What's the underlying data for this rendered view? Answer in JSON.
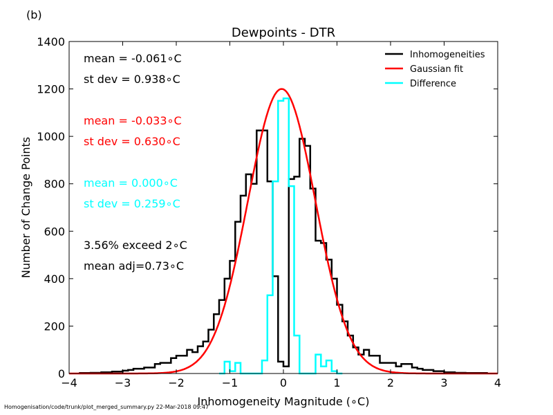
{
  "panel_label": "(b)",
  "footer": "Homogenisation/code/trunk/plot_merged_summary.py   22-Mar-2018 09:47",
  "chart_data": {
    "type": "line",
    "title": "Dewpoints - DTR",
    "xlabel": "Inhomogeneity Magnitude (∘C)",
    "ylabel": "Number of Change Points",
    "xlim": [
      -4,
      4
    ],
    "ylim": [
      0,
      1400
    ],
    "x_ticks": [
      -4,
      -3,
      -2,
      -1,
      0,
      1,
      2,
      3,
      4
    ],
    "x_tick_labels": [
      "−4",
      "−3",
      "−2",
      "−1",
      "0",
      "1",
      "2",
      "3",
      "4"
    ],
    "y_ticks": [
      0,
      200,
      400,
      600,
      800,
      1000,
      1200,
      1400
    ],
    "y_tick_labels": [
      "0",
      "200",
      "400",
      "600",
      "800",
      "1000",
      "1200",
      "1400"
    ],
    "grid": false,
    "legend_position": "top-right",
    "bin_width": 0.1,
    "series": [
      {
        "name": "Inhomogeneities",
        "color": "#000000",
        "style": "step",
        "bin_left_edges": [
          -3.8,
          -3.7,
          -3.6,
          -3.5,
          -3.4,
          -3.3,
          -3.2,
          -3.1,
          -3.0,
          -2.9,
          -2.8,
          -2.7,
          -2.6,
          -2.5,
          -2.4,
          -2.3,
          -2.2,
          -2.1,
          -2.0,
          -1.9,
          -1.8,
          -1.7,
          -1.6,
          -1.5,
          -1.4,
          -1.3,
          -1.2,
          -1.1,
          -1.0,
          -0.9,
          -0.8,
          -0.7,
          -0.6,
          -0.5,
          -0.4,
          -0.3,
          -0.2,
          -0.1,
          0.0,
          0.1,
          0.2,
          0.3,
          0.4,
          0.5,
          0.6,
          0.7,
          0.8,
          0.9,
          1.0,
          1.1,
          1.2,
          1.3,
          1.4,
          1.5,
          1.6,
          1.7,
          1.8,
          1.9,
          2.0,
          2.1,
          2.2,
          2.3,
          2.4,
          2.5,
          2.6,
          2.7,
          2.8,
          2.9,
          3.0,
          3.1,
          3.2,
          3.3,
          3.4,
          3.5,
          3.6,
          3.7
        ],
        "values": [
          2,
          2,
          3,
          3,
          5,
          5,
          8,
          8,
          12,
          15,
          20,
          20,
          25,
          25,
          40,
          45,
          45,
          65,
          75,
          75,
          100,
          90,
          115,
          135,
          185,
          250,
          310,
          400,
          475,
          640,
          750,
          840,
          800,
          1025,
          1025,
          810,
          410,
          50,
          30,
          820,
          830,
          990,
          960,
          780,
          560,
          550,
          480,
          400,
          290,
          220,
          160,
          110,
          80,
          100,
          75,
          75,
          45,
          45,
          45,
          30,
          40,
          40,
          25,
          20,
          15,
          15,
          10,
          10,
          5,
          5,
          3,
          3,
          2,
          2,
          2,
          2
        ]
      },
      {
        "name": "Gaussian fit",
        "color": "#ff0000",
        "style": "line",
        "mean": -0.033,
        "sigma": 0.63,
        "peak": 1200
      },
      {
        "name": "Difference",
        "color": "#00ffff",
        "style": "step",
        "bin_left_edges": [
          -1.2,
          -1.1,
          -1.0,
          -0.9,
          -0.8,
          -0.7,
          -0.6,
          -0.5,
          -0.4,
          -0.3,
          -0.2,
          -0.1,
          0.0,
          0.1,
          0.2,
          0.3,
          0.4,
          0.5,
          0.6,
          0.7,
          0.8,
          0.9,
          1.0
        ],
        "values": [
          0,
          50,
          10,
          45,
          0,
          0,
          0,
          0,
          55,
          330,
          810,
          1150,
          1160,
          790,
          160,
          0,
          0,
          0,
          80,
          30,
          55,
          10,
          0
        ]
      }
    ],
    "annotations": [
      {
        "lines": [
          "mean = -0.061∘C",
          "st dev =  0.938∘C"
        ],
        "color": "#000000"
      },
      {
        "lines": [
          "mean = -0.033∘C",
          "st dev =  0.630∘C"
        ],
        "color": "#ff0000"
      },
      {
        "lines": [
          "mean =  0.000∘C",
          "st dev =  0.259∘C"
        ],
        "color": "#00ffff"
      },
      {
        "lines": [
          "3.56% exceed 2∘C",
          "mean adj=0.73∘C"
        ],
        "color": "#000000"
      }
    ]
  }
}
